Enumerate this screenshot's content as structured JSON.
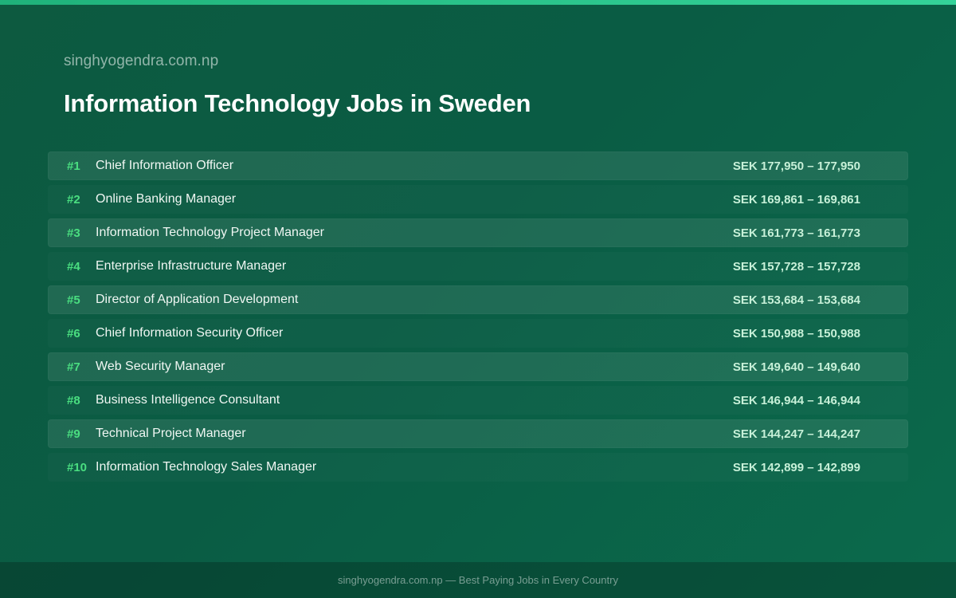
{
  "site_name": "singhyogendra.com.np",
  "title": "Information Technology Jobs in Sweden",
  "jobs": [
    {
      "rank": "#1",
      "title": "Chief Information Officer",
      "salary": "SEK 177,950 – 177,950"
    },
    {
      "rank": "#2",
      "title": "Online Banking Manager",
      "salary": "SEK 169,861 – 169,861"
    },
    {
      "rank": "#3",
      "title": "Information Technology Project Manager",
      "salary": "SEK 161,773 – 161,773"
    },
    {
      "rank": "#4",
      "title": "Enterprise Infrastructure Manager",
      "salary": "SEK 157,728 – 157,728"
    },
    {
      "rank": "#5",
      "title": "Director of Application Development",
      "salary": "SEK 153,684 – 153,684"
    },
    {
      "rank": "#6",
      "title": "Chief Information Security Officer",
      "salary": "SEK 150,988 – 150,988"
    },
    {
      "rank": "#7",
      "title": "Web Security Manager",
      "salary": "SEK 149,640 – 149,640"
    },
    {
      "rank": "#8",
      "title": "Business Intelligence Consultant",
      "salary": "SEK 146,944 – 146,944"
    },
    {
      "rank": "#9",
      "title": "Technical Project Manager",
      "salary": "SEK 144,247 – 144,247"
    },
    {
      "rank": "#10",
      "title": "Information Technology Sales Manager",
      "salary": "SEK 142,899 – 142,899"
    }
  ],
  "footer": "singhyogendra.com.np — Best Paying Jobs in Every Country",
  "colors": {
    "background": "#0a5c44",
    "accent_bar": "#34d399",
    "rank": "#4ade80",
    "salary": "#c7f0d8"
  }
}
